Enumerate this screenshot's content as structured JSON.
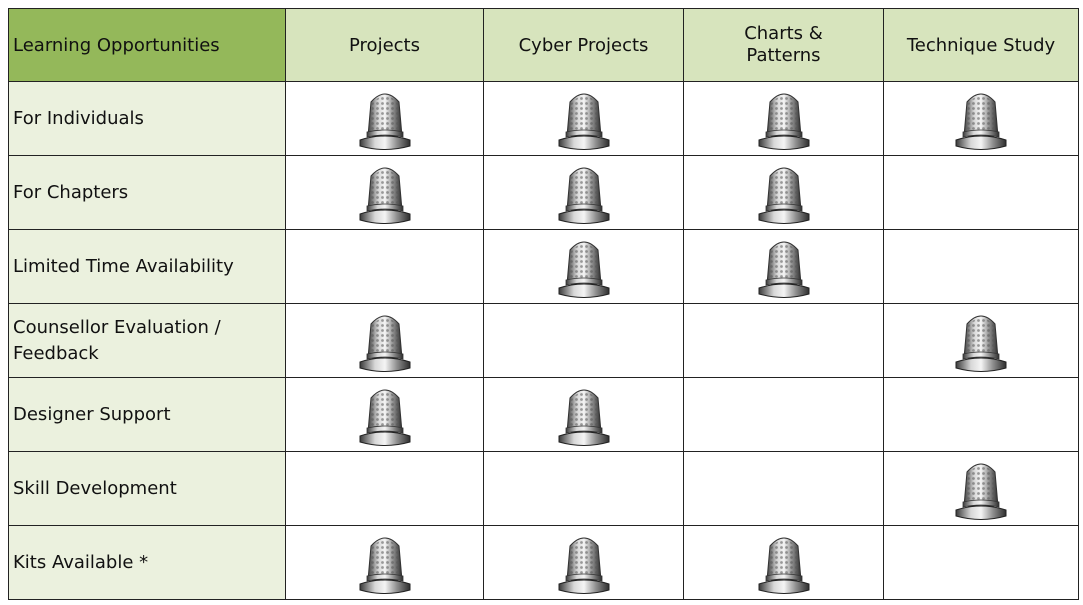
{
  "table": {
    "header": [
      "Learning Opportunities",
      "Projects",
      "Cyber Projects",
      "Charts & Patterns",
      "Technique Study"
    ],
    "rows": [
      {
        "label": "For Individuals",
        "cells": [
          true,
          true,
          true,
          true
        ]
      },
      {
        "label": "For Chapters",
        "cells": [
          true,
          true,
          true,
          false
        ]
      },
      {
        "label": "Limited Time Availability",
        "cells": [
          false,
          true,
          true,
          false
        ]
      },
      {
        "label": "Counsellor Evaluation / Feedback",
        "cells": [
          true,
          false,
          false,
          true
        ]
      },
      {
        "label": "Designer Support",
        "cells": [
          true,
          true,
          false,
          false
        ]
      },
      {
        "label": "Skill Development",
        "cells": [
          false,
          false,
          false,
          true
        ]
      },
      {
        "label": "Kits Available *",
        "cells": [
          true,
          true,
          true,
          false
        ]
      }
    ]
  }
}
